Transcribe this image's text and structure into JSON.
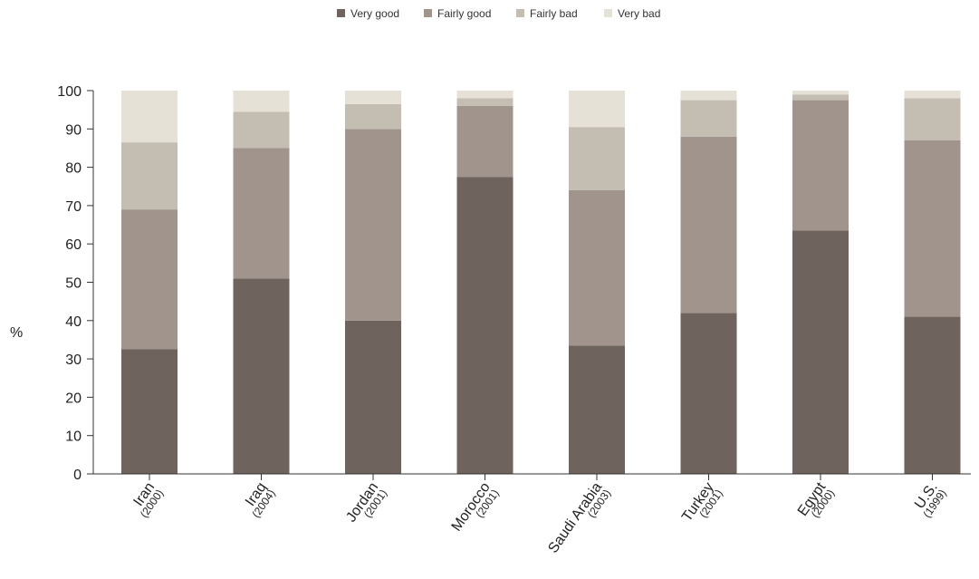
{
  "chart_data": {
    "type": "bar",
    "stacked": true,
    "title": "",
    "xlabel": "",
    "ylabel": "%",
    "ylim": [
      0,
      100
    ],
    "yticks": [
      0,
      10,
      20,
      30,
      40,
      50,
      60,
      70,
      80,
      90,
      100
    ],
    "grid": false,
    "legend_position": "top-center",
    "categories": [
      {
        "name": "Iran",
        "year": "(2000)"
      },
      {
        "name": "Iraq",
        "year": "(2004)"
      },
      {
        "name": "Jordan",
        "year": "(2001)"
      },
      {
        "name": "Morocco",
        "year": "(2001)"
      },
      {
        "name": "Saudi Arabia",
        "year": "(2003)"
      },
      {
        "name": "Turkey",
        "year": "(2001)"
      },
      {
        "name": "Egypt",
        "year": "(2000)"
      },
      {
        "name": "U.S.",
        "year": "(1999)"
      }
    ],
    "series": [
      {
        "name": "Very good",
        "color": "#6f635d",
        "values": [
          32.5,
          51,
          40,
          77.5,
          33.5,
          42,
          63.5,
          41
        ]
      },
      {
        "name": "Fairly good",
        "color": "#a0948d",
        "values": [
          36.5,
          34,
          50,
          18.5,
          40.5,
          46,
          34,
          46
        ]
      },
      {
        "name": "Fairly bad",
        "color": "#c4bdb2",
        "values": [
          17.5,
          9.5,
          6.5,
          2,
          16.5,
          9.5,
          1.5,
          11
        ]
      },
      {
        "name": "Very bad",
        "color": "#e5e1d6",
        "values": [
          13.5,
          5.5,
          3.5,
          2,
          9.5,
          2.5,
          1,
          2
        ]
      }
    ]
  }
}
